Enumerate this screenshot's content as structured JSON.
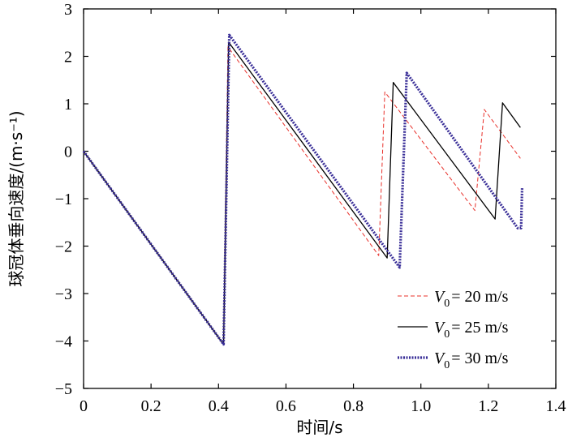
{
  "chart_data": {
    "type": "line",
    "xlabel": "时间/s",
    "ylabel": "球冠体垂向速度/(m·s⁻¹)",
    "xlim": [
      0,
      1.4
    ],
    "ylim": [
      -5,
      3
    ],
    "x_ticks": [
      0,
      0.2,
      0.4,
      0.6,
      0.8,
      1.0,
      1.2,
      1.4
    ],
    "x_tick_labels": [
      "0",
      "0.2",
      "0.4",
      "0.6",
      "0.8",
      "1.0",
      "1.2",
      "1.4"
    ],
    "y_ticks": [
      -5,
      -4,
      -3,
      -2,
      -1,
      0,
      1,
      2,
      3
    ],
    "y_tick_labels": [
      "−5",
      "−4",
      "−3",
      "−2",
      "−1",
      "0",
      "1",
      "2",
      "3"
    ],
    "grid": false,
    "legend_position": "bottom-right",
    "series": [
      {
        "name": "V0 = 20 m/s",
        "legend_var": "V",
        "legend_sub": "0",
        "legend_rest": "= 20 m/s",
        "color": "#e8302a",
        "style": "dashed",
        "x": [
          0,
          0.415,
          0.428,
          0.875,
          0.893,
          1.16,
          1.188,
          1.295
        ],
        "y": [
          0,
          -4.07,
          2.2,
          -2.2,
          1.25,
          -1.25,
          0.88,
          -0.15
        ]
      },
      {
        "name": "V0 = 25 m/s",
        "legend_var": "V",
        "legend_sub": "0",
        "legend_rest": "= 25 m/s",
        "color": "#000000",
        "style": "solid",
        "x": [
          0,
          0.415,
          0.43,
          0.9,
          0.918,
          1.22,
          1.242,
          1.295
        ],
        "y": [
          0,
          -4.07,
          2.3,
          -2.25,
          1.45,
          -1.43,
          1.02,
          0.5
        ]
      },
      {
        "name": "V0 = 30 m/s",
        "legend_var": "V",
        "legend_sub": "0",
        "legend_rest": "= 30 m/s",
        "color": "#3a2f98",
        "style": "dotted",
        "x": [
          0,
          0.415,
          0.432,
          0.937,
          0.958,
          1.287,
          1.297,
          1.3
        ],
        "y": [
          0,
          -4.07,
          2.45,
          -2.45,
          1.65,
          -1.62,
          -1.62,
          -0.78
        ]
      }
    ]
  }
}
